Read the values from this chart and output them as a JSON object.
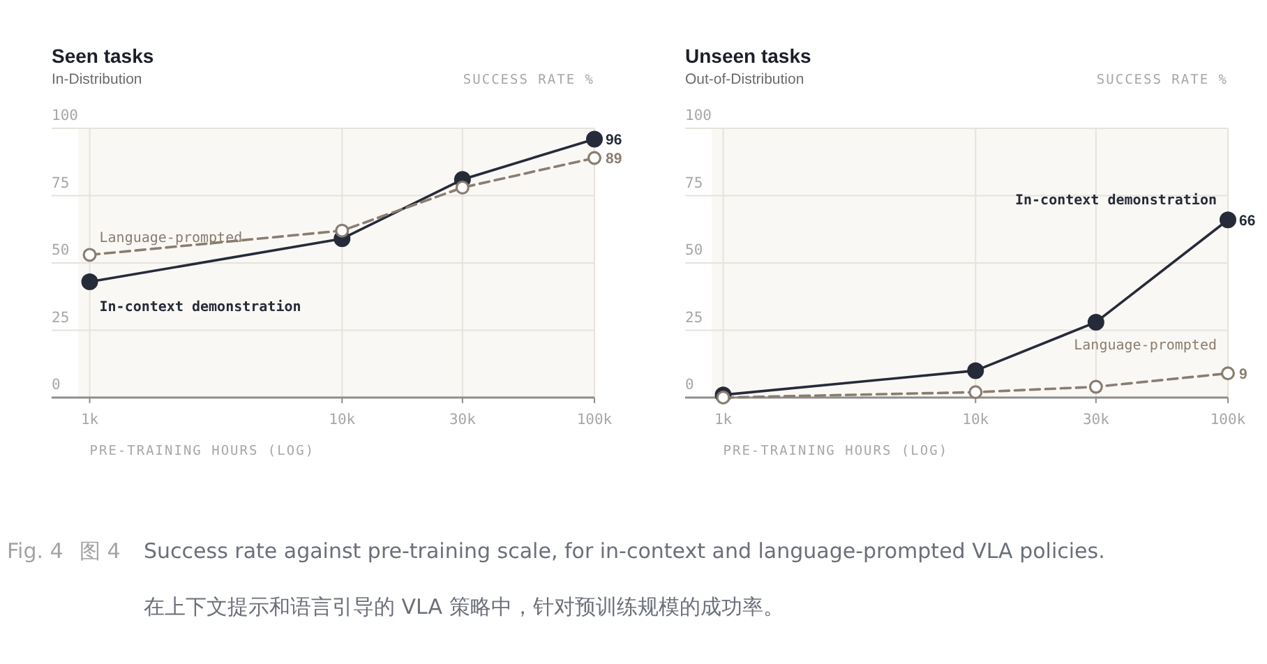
{
  "chart_data": [
    {
      "type": "line",
      "title": "Seen tasks",
      "subtitle": "In-Distribution",
      "ylabel": "SUCCESS RATE %",
      "xlabel": "PRE-TRAINING HOURS (LOG)",
      "log": "x",
      "grid": true,
      "x": [
        1000,
        10000,
        30000,
        100000
      ],
      "xlim": [
        900,
        100000
      ],
      "xticks": [
        {
          "value": 1000,
          "label": "1k"
        },
        {
          "value": 10000,
          "label": "10k"
        },
        {
          "value": 30000,
          "label": "30k"
        },
        {
          "value": 100000,
          "label": "100k"
        }
      ],
      "ylim": [
        0,
        100
      ],
      "yticks": [
        0,
        25,
        50,
        75,
        100
      ],
      "series": [
        {
          "name": "In-context demonstration",
          "color": "#262b3a",
          "marker": "circle",
          "line_style": "solid",
          "values": [
            43,
            59,
            81,
            96
          ],
          "value_labels": [
            null,
            null,
            null,
            "96"
          ]
        },
        {
          "name": "Language-prompted",
          "color": "#8a7d70",
          "marker": "circle",
          "line_style": "dashed",
          "values": [
            53,
            62,
            78,
            89
          ],
          "value_labels": [
            null,
            null,
            null,
            "89"
          ]
        }
      ],
      "annotations": [
        "Fig. 4",
        "图 4",
        "Success rate against pre-training scale, for in-context and language-prompted VLA policies.",
        "在上下文提示和语言引导的 VLA 策略中，针对预训练规模的成功率。"
      ]
    },
    {
      "type": "line",
      "title": "Unseen tasks",
      "subtitle": "Out-of-Distribution",
      "ylabel": "SUCCESS RATE %",
      "xlabel": "PRE-TRAINING HOURS (LOG)",
      "log": "x",
      "grid": true,
      "x": [
        1000,
        10000,
        30000,
        100000
      ],
      "xlim": [
        900,
        100000
      ],
      "xticks": [
        {
          "value": 1000,
          "label": "1k"
        },
        {
          "value": 10000,
          "label": "10k"
        },
        {
          "value": 30000,
          "label": "30k"
        },
        {
          "value": 100000,
          "label": "100k"
        }
      ],
      "ylim": [
        0,
        100
      ],
      "yticks": [
        0,
        25,
        50,
        75,
        100
      ],
      "series": [
        {
          "name": "In-context demonstration",
          "color": "#262b3a",
          "marker": "circle",
          "line_style": "solid",
          "values": [
            1,
            10,
            28,
            66
          ],
          "value_labels": [
            null,
            null,
            null,
            "66"
          ]
        },
        {
          "name": "Language-prompted",
          "color": "#8a7d70",
          "marker": "circle",
          "line_style": "dashed",
          "values": [
            0,
            2,
            4,
            9
          ],
          "value_labels": [
            null,
            null,
            null,
            "9"
          ]
        }
      ]
    }
  ]
}
